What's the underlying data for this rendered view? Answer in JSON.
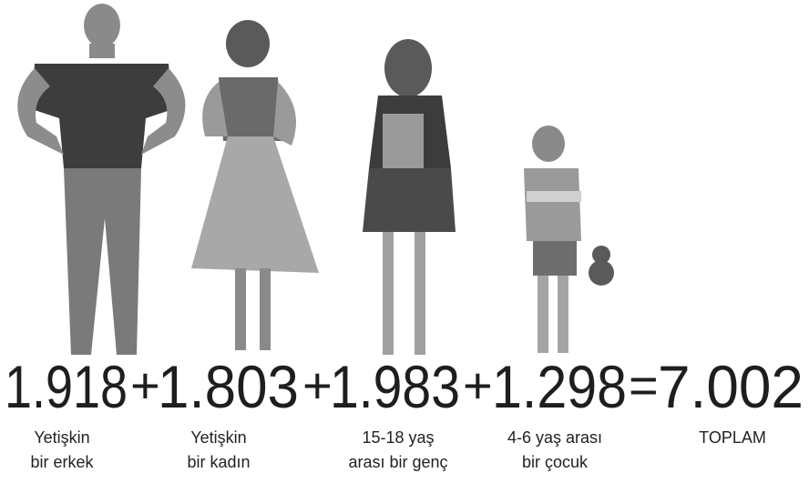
{
  "items": [
    {
      "value": "1.918",
      "label": [
        "Yetişkin",
        "bir erkek"
      ]
    },
    {
      "value": "1.803",
      "label": [
        "Yetişkin",
        "bir kadın"
      ]
    },
    {
      "value": "1.983",
      "label": [
        "15-18 yaş",
        "arası bir genç"
      ]
    },
    {
      "value": "1.298",
      "label": [
        "4-6 yaş arası",
        "bir çocuk"
      ]
    }
  ],
  "operators": [
    "+",
    "+",
    "+",
    "="
  ],
  "total": {
    "value": "7.002",
    "label": [
      "TOPLAM"
    ]
  }
}
